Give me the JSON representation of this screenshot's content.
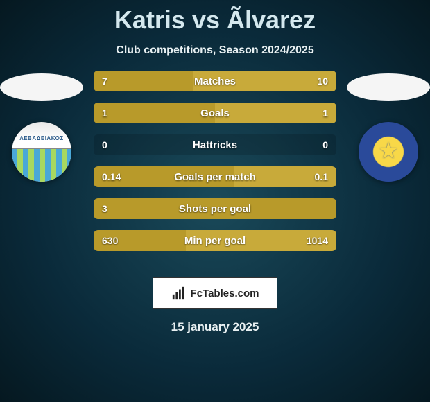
{
  "title": "Katris vs Ãlvarez",
  "subtitle": "Club competitions, Season 2024/2025",
  "date": "15 january 2025",
  "footer_label": "FcTables.com",
  "colors": {
    "bar_left": "#b89a2a",
    "bar_right": "#c8aa3a",
    "bar_bg": "rgba(0,0,0,0.15)"
  },
  "club_left_text": "ΛΕΒΑΔΕΙΑΚΟΣ",
  "stats": [
    {
      "label": "Matches",
      "left_val": "7",
      "right_val": "10",
      "left_pct": 41,
      "right_pct": 59
    },
    {
      "label": "Goals",
      "left_val": "1",
      "right_val": "1",
      "left_pct": 50,
      "right_pct": 50
    },
    {
      "label": "Hattricks",
      "left_val": "0",
      "right_val": "0",
      "left_pct": 0,
      "right_pct": 0
    },
    {
      "label": "Goals per match",
      "left_val": "0.14",
      "right_val": "0.1",
      "left_pct": 58,
      "right_pct": 42
    },
    {
      "label": "Shots per goal",
      "left_val": "3",
      "right_val": "",
      "left_pct": 100,
      "right_pct": 0
    },
    {
      "label": "Min per goal",
      "left_val": "630",
      "right_val": "1014",
      "left_pct": 38,
      "right_pct": 62
    }
  ]
}
